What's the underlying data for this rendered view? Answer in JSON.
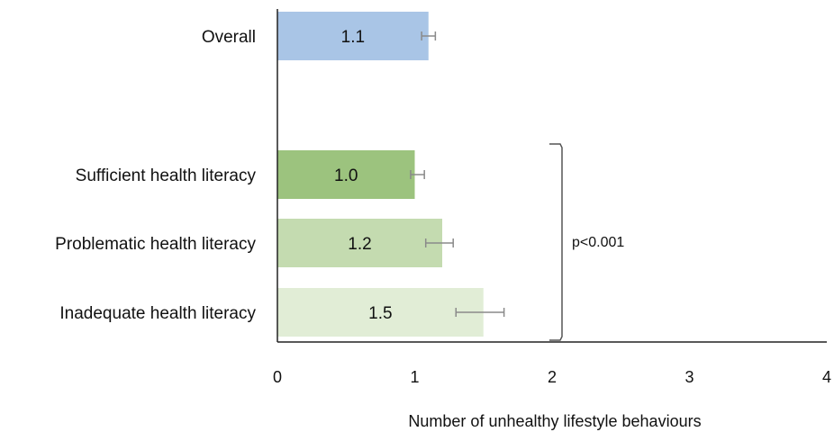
{
  "chart_data": {
    "type": "bar",
    "orientation": "horizontal",
    "categories": [
      "Overall",
      "Sufficient health literacy",
      "Problematic health literacy",
      "Inadequate health literacy"
    ],
    "values": [
      1.1,
      1.0,
      1.2,
      1.5
    ],
    "value_labels": [
      "1.1",
      "1.0",
      "1.2",
      "1.5"
    ],
    "error_bars": [
      [
        1.05,
        1.15
      ],
      [
        0.97,
        1.07
      ],
      [
        1.08,
        1.28
      ],
      [
        1.3,
        1.65
      ]
    ],
    "colors": [
      "#a9c5e6",
      "#9cc37e",
      "#c4dbb0",
      "#e1edd6"
    ],
    "xlabel": "Number of unhealthy lifestyle behaviours",
    "xlim": [
      0,
      4
    ],
    "xticks": [
      "0",
      "1",
      "2",
      "3",
      "4"
    ],
    "grid": false,
    "annotation": "p<0.001"
  }
}
